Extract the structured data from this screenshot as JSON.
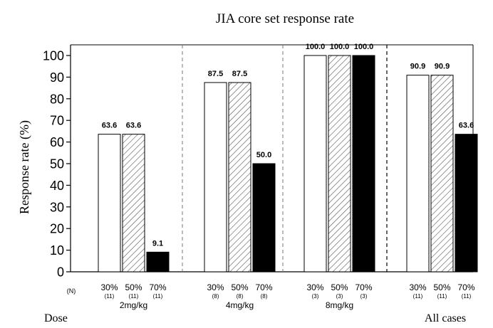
{
  "chart_data": {
    "type": "bar",
    "title": "JIA core set response rate",
    "ylabel": "Response rate (%)",
    "ylim": [
      0,
      100
    ],
    "yticks": [
      0,
      10,
      20,
      30,
      40,
      50,
      60,
      70,
      80,
      90,
      100
    ],
    "grid": false,
    "n_label": "(N)",
    "dose_label": "Dose",
    "series": [
      {
        "level": "30%",
        "fill": "white",
        "color": "#ffffff"
      },
      {
        "level": "50%",
        "fill": "hatched",
        "color": "#ffffff"
      },
      {
        "level": "70%",
        "fill": "black",
        "color": "#000000"
      }
    ],
    "groups": [
      {
        "name": "2mg/kg",
        "values": [
          63.6,
          63.6,
          9.1
        ],
        "value_labels": [
          "63.6",
          "63.6",
          "9.1"
        ],
        "n": [
          "(11)",
          "(11)",
          "(11)"
        ]
      },
      {
        "name": "4mg/kg",
        "values": [
          87.5,
          87.5,
          50.0
        ],
        "value_labels": [
          "87.5",
          "87.5",
          "50.0"
        ],
        "n": [
          "(8)",
          "(8)",
          "(8)"
        ]
      },
      {
        "name": "8mg/kg",
        "values": [
          100.0,
          100.0,
          100.0
        ],
        "value_labels": [
          "100.0",
          "100.0",
          "100.0"
        ],
        "n": [
          "(3)",
          "(3)",
          "(3)"
        ]
      },
      {
        "name": "All cases",
        "values": [
          90.9,
          90.9,
          63.6
        ],
        "value_labels": [
          "90.9",
          "90.9",
          "63.6"
        ],
        "n": [
          "(11)",
          "(11)",
          "(11)"
        ]
      }
    ]
  }
}
